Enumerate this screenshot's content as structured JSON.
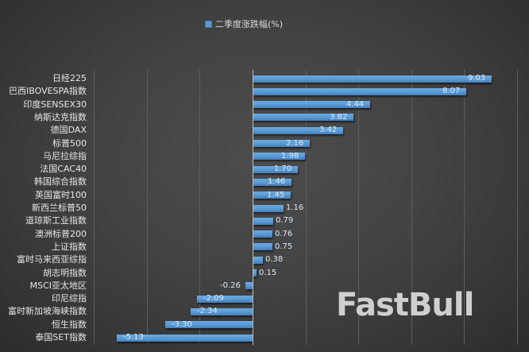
{
  "chart_data": {
    "type": "bar",
    "orientation": "horizontal",
    "title": "",
    "legend": {
      "entries": [
        "二季度涨跌幅(%)"
      ],
      "position": "top"
    },
    "xlabel": "",
    "ylabel": "",
    "xlim": [
      -6,
      10
    ],
    "grid": true,
    "gridline_step": 2,
    "series_color": "#5b9bd5",
    "categories": [
      "日经225",
      "巴西IBOVESPA指数",
      "印度SENSEX30",
      "纳斯达克指数",
      "德国DAX",
      "标普500",
      "马尼拉综指",
      "法国CAC40",
      "韩国综合指数",
      "英国富时100",
      "新西兰标普50",
      "道琼斯工业指数",
      "澳洲标普200",
      "上证指数",
      "富时马来西亚综指",
      "胡志明指数",
      "MSCI亚太地区",
      "印尼综指",
      "富时新加坡海峡指数",
      "恒生指数",
      "泰国SET指数"
    ],
    "series": [
      {
        "name": "二季度涨跌幅(%)",
        "values": [
          9.03,
          8.07,
          4.44,
          3.82,
          3.42,
          2.16,
          1.98,
          1.7,
          1.46,
          1.45,
          1.16,
          0.79,
          0.76,
          0.75,
          0.38,
          0.15,
          -0.26,
          -2.09,
          -2.34,
          -3.3,
          -5.13
        ],
        "labels": [
          "9.03",
          "8.07",
          "4.44",
          "3.82",
          "3.42",
          "2.16",
          "1.98",
          "1.70",
          "1.46",
          "1.45",
          "1.16",
          "0.79",
          "0.76",
          "0.75",
          "0.38",
          "0.15",
          "-0.26",
          "-2.09",
          "-2.34",
          "-3.30",
          "-5.13"
        ]
      }
    ]
  },
  "legend": {
    "label": "二季度涨跌幅(%)"
  },
  "watermark": {
    "text": "FastBull"
  }
}
